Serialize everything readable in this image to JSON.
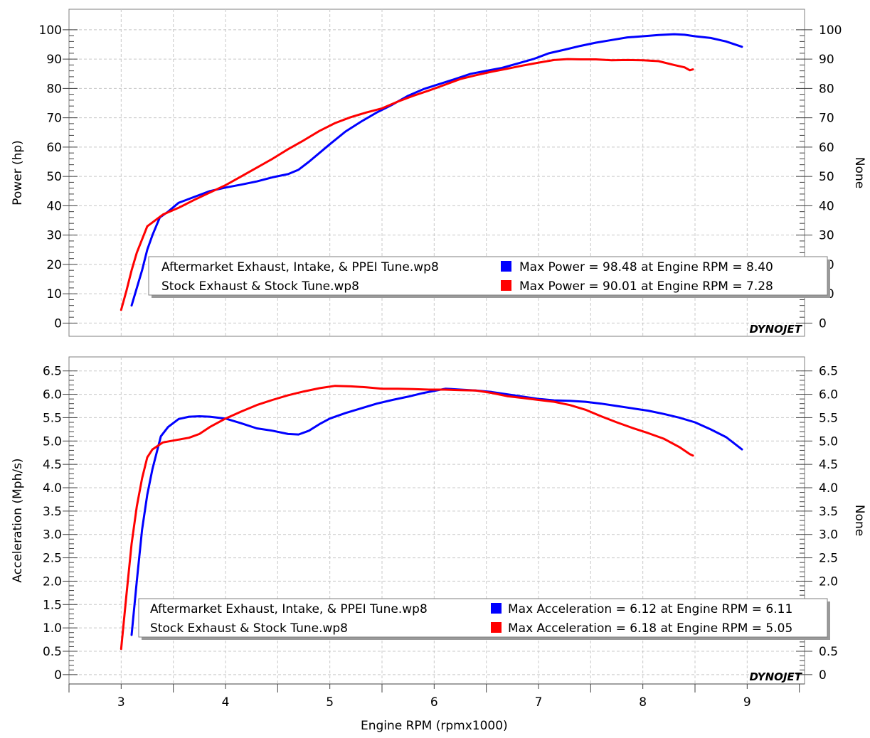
{
  "chart_data": [
    {
      "type": "line",
      "ylabel": "Power (hp)",
      "ylabel_right": "None",
      "xlim": [
        2.5,
        9.55
      ],
      "ylim": [
        -4.5,
        107
      ],
      "yticks": [
        0,
        10,
        20,
        30,
        40,
        50,
        60,
        70,
        80,
        90,
        100
      ],
      "ytick_labels": [
        "0",
        "10",
        "20",
        "30",
        "40",
        "50",
        "60",
        "70",
        "80",
        "90",
        "100"
      ],
      "yticks_right": [
        0,
        10,
        20,
        30,
        40,
        50,
        60,
        70,
        80,
        90,
        100
      ],
      "yticks_right_labels": [
        "0",
        "10",
        "20",
        "30",
        "40",
        "50",
        "60",
        "70",
        "80",
        "90",
        "100"
      ],
      "grid": true,
      "logo": "DYNOJET",
      "legend": {
        "placement": "bottom-center",
        "entries": [
          {
            "name": "Aftermarket Exhaust, Intake, & PPEI Tune.wp8",
            "color": "#0000ff",
            "stat": "Max Power = 98.48 at Engine RPM = 8.40"
          },
          {
            "name": "Stock Exhaust & Stock Tune.wp8",
            "color": "#ff0000",
            "stat": "Max Power = 90.01 at Engine RPM = 7.28"
          }
        ]
      },
      "series": [
        {
          "name": "Aftermarket Exhaust, Intake, & PPEI Tune.wp8",
          "color": "#0000ff",
          "x": [
            3.1,
            3.2,
            3.25,
            3.3,
            3.37,
            3.45,
            3.55,
            3.7,
            3.85,
            4.0,
            4.15,
            4.3,
            4.45,
            4.6,
            4.7,
            4.8,
            4.9,
            5.0,
            5.15,
            5.3,
            5.45,
            5.6,
            5.75,
            5.9,
            6.05,
            6.2,
            6.35,
            6.5,
            6.65,
            6.8,
            6.95,
            7.1,
            7.25,
            7.4,
            7.55,
            7.7,
            7.85,
            8.0,
            8.15,
            8.3,
            8.4,
            8.5,
            8.65,
            8.8,
            8.95
          ],
          "y": [
            6,
            18,
            25,
            30,
            36,
            38,
            41,
            43,
            45,
            46.2,
            47.2,
            48.3,
            49.7,
            50.8,
            52.3,
            55,
            58,
            61,
            65.3,
            68.7,
            71.8,
            74.5,
            77.5,
            79.8,
            81.5,
            83.2,
            85,
            86,
            87,
            88.5,
            90,
            92,
            93.2,
            94.5,
            95.6,
            96.5,
            97.4,
            97.8,
            98.2,
            98.48,
            98.3,
            97.8,
            97.2,
            96,
            94.2
          ]
        },
        {
          "name": "Stock Exhaust & Stock Tune.wp8",
          "color": "#ff0000",
          "x": [
            3.0,
            3.05,
            3.1,
            3.15,
            3.25,
            3.4,
            3.55,
            3.7,
            3.85,
            4.0,
            4.15,
            4.3,
            4.45,
            4.6,
            4.75,
            4.9,
            5.05,
            5.2,
            5.35,
            5.5,
            5.65,
            5.8,
            5.95,
            6.1,
            6.25,
            6.4,
            6.55,
            6.7,
            6.85,
            7.0,
            7.15,
            7.28,
            7.4,
            7.55,
            7.7,
            7.85,
            8.0,
            8.15,
            8.3,
            8.4,
            8.45,
            8.48
          ],
          "y": [
            4.5,
            11,
            18,
            24,
            33,
            37,
            39.3,
            42,
            44.5,
            47,
            50,
            53,
            56,
            59.3,
            62.3,
            65.5,
            68.2,
            70.2,
            71.8,
            73.2,
            75.5,
            77.5,
            79.3,
            81.2,
            83.2,
            84.5,
            85.7,
            86.7,
            87.8,
            88.8,
            89.7,
            90.01,
            89.9,
            89.9,
            89.6,
            89.7,
            89.6,
            89.3,
            88,
            87.2,
            86.2,
            86.5
          ]
        }
      ]
    },
    {
      "type": "line",
      "xlabel": "Engine RPM (rpmx1000)",
      "ylabel": "Acceleration (Mph/s)",
      "ylabel_right": "None",
      "xlim": [
        2.5,
        9.55
      ],
      "ylim": [
        -0.2,
        6.8
      ],
      "xticks": [
        3,
        4,
        5,
        6,
        7,
        8,
        9
      ],
      "xtick_labels": [
        "3",
        "4",
        "5",
        "6",
        "7",
        "8",
        "9"
      ],
      "yticks": [
        0,
        0.5,
        1.0,
        1.5,
        2.0,
        2.5,
        3.0,
        3.5,
        4.0,
        4.5,
        5.0,
        5.5,
        6.0,
        6.5
      ],
      "ytick_labels": [
        "0",
        "0.5",
        "1.0",
        "1.5",
        "2.0",
        "2.5",
        "3.0",
        "3.5",
        "4.0",
        "4.5",
        "5.0",
        "5.5",
        "6.0",
        "6.5"
      ],
      "yticks_right": [
        0,
        0.5,
        2.0,
        2.5,
        3.0,
        3.5,
        4.0,
        4.5,
        5.0,
        5.5,
        6.0,
        6.5
      ],
      "yticks_right_labels": [
        "0",
        "0.5",
        "2.0",
        "2.5",
        "3.0",
        "3.5",
        "4.0",
        "4.5",
        "5.0",
        "5.5",
        "6.0",
        "6.5"
      ],
      "grid": true,
      "logo": "DYNOJET",
      "legend": {
        "placement": "bottom-center",
        "entries": [
          {
            "name": "Aftermarket Exhaust, Intake, & PPEI Tune.wp8",
            "color": "#0000ff",
            "stat": "Max Acceleration = 6.12 at Engine RPM = 6.11"
          },
          {
            "name": "Stock Exhaust & Stock Tune.wp8",
            "color": "#ff0000",
            "stat": "Max Acceleration = 6.18 at Engine RPM = 5.05"
          }
        ]
      },
      "series": [
        {
          "name": "Aftermarket Exhaust, Intake, & PPEI Tune.wp8",
          "color": "#0000ff",
          "x": [
            3.1,
            3.15,
            3.2,
            3.25,
            3.3,
            3.38,
            3.45,
            3.55,
            3.65,
            3.75,
            3.85,
            4.0,
            4.15,
            4.3,
            4.45,
            4.6,
            4.7,
            4.8,
            4.9,
            5.0,
            5.15,
            5.3,
            5.45,
            5.6,
            5.75,
            5.9,
            6.11,
            6.25,
            6.4,
            6.55,
            6.7,
            6.85,
            7.0,
            7.15,
            7.3,
            7.45,
            7.6,
            7.75,
            7.9,
            8.05,
            8.2,
            8.35,
            8.5,
            8.65,
            8.8,
            8.95
          ],
          "y": [
            0.85,
            2.0,
            3.1,
            3.85,
            4.4,
            5.1,
            5.3,
            5.47,
            5.52,
            5.53,
            5.52,
            5.48,
            5.38,
            5.27,
            5.22,
            5.15,
            5.14,
            5.22,
            5.36,
            5.48,
            5.6,
            5.7,
            5.8,
            5.88,
            5.95,
            6.03,
            6.12,
            6.1,
            6.08,
            6.05,
            6.0,
            5.95,
            5.9,
            5.87,
            5.86,
            5.84,
            5.8,
            5.75,
            5.7,
            5.65,
            5.58,
            5.5,
            5.4,
            5.25,
            5.08,
            4.82
          ]
        },
        {
          "name": "Stock Exhaust & Stock Tune.wp8",
          "color": "#ff0000",
          "x": [
            3.0,
            3.05,
            3.1,
            3.15,
            3.2,
            3.25,
            3.3,
            3.4,
            3.55,
            3.65,
            3.75,
            3.85,
            4.0,
            4.15,
            4.3,
            4.45,
            4.6,
            4.75,
            4.9,
            5.05,
            5.2,
            5.35,
            5.5,
            5.65,
            5.8,
            5.95,
            6.1,
            6.25,
            6.4,
            6.55,
            6.7,
            6.85,
            7.0,
            7.15,
            7.3,
            7.45,
            7.6,
            7.75,
            7.9,
            8.05,
            8.2,
            8.35,
            8.45,
            8.48
          ],
          "y": [
            0.55,
            1.7,
            2.8,
            3.6,
            4.2,
            4.65,
            4.82,
            4.97,
            5.03,
            5.07,
            5.15,
            5.3,
            5.48,
            5.63,
            5.77,
            5.88,
            5.98,
            6.06,
            6.13,
            6.18,
            6.17,
            6.15,
            6.12,
            6.12,
            6.11,
            6.1,
            6.1,
            6.09,
            6.08,
            6.03,
            5.96,
            5.92,
            5.88,
            5.84,
            5.77,
            5.67,
            5.53,
            5.4,
            5.28,
            5.17,
            5.05,
            4.87,
            4.72,
            4.69
          ]
        }
      ]
    }
  ]
}
